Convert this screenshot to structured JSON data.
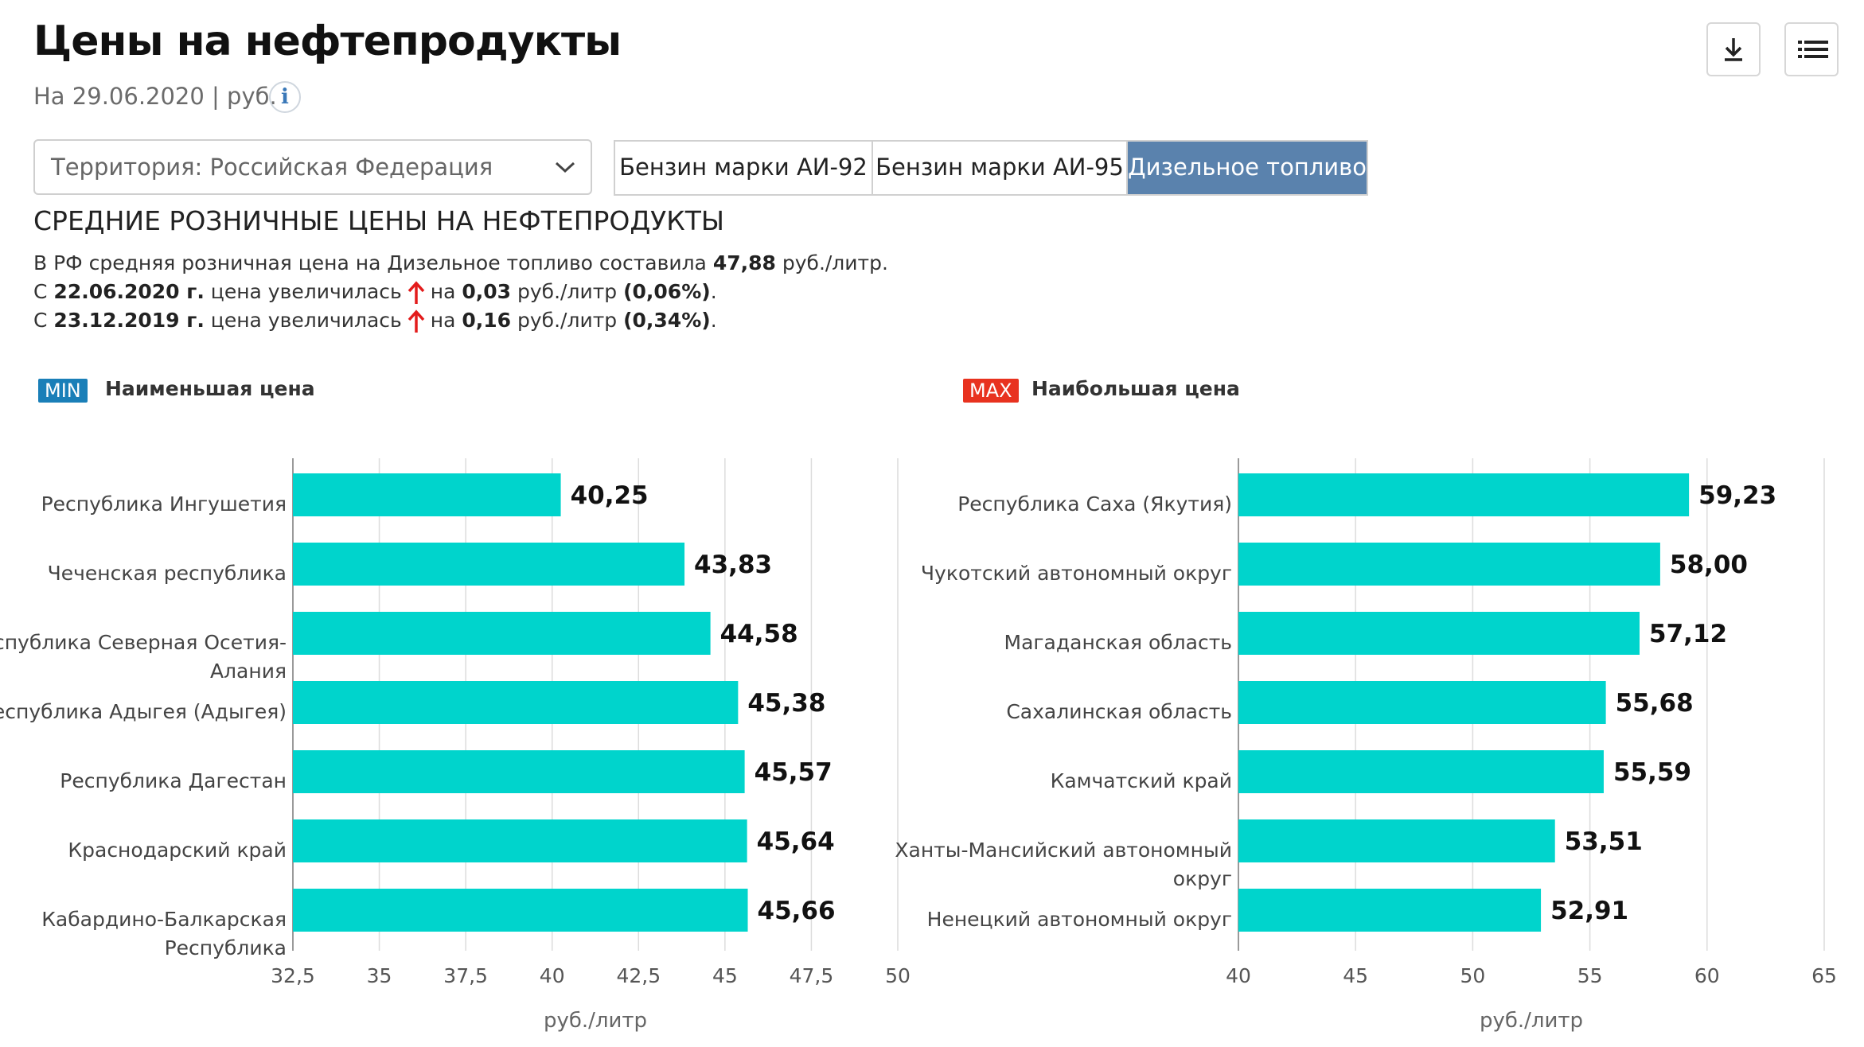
{
  "header": {
    "title": "Цены на нефтепродукты",
    "date_unit": "На 29.06.2020 | руб.",
    "info_icon": "i"
  },
  "controls": {
    "territory_label": "Территория: Российская  Федерация",
    "tabs": [
      {
        "label": "Бензин марки АИ-92",
        "active": false
      },
      {
        "label": "Бензин марки АИ-95",
        "active": false
      },
      {
        "label": "Дизельное топливо",
        "active": true
      }
    ]
  },
  "summary": {
    "heading": "СРЕДНИЕ РОЗНИЧНЫЕ ЦЕНЫ НА НЕФТЕПРОДУКТЫ",
    "line1_text": "В РФ средняя розничная цена на Дизельное топливо составила",
    "line1_value": "47,88",
    "line1_unit": "руб./литр.",
    "line2_prefix": "С",
    "line2_date": "22.06.2020 г.",
    "line2_text": "цена увеличилась",
    "line2_on": "на",
    "line2_value": "0,03",
    "line2_unit": "руб./литр",
    "line2_pct": "(0,06%)",
    "line3_prefix": "С",
    "line3_date": "23.12.2019 г.",
    "line3_text": "цена увеличилась",
    "line3_on": "на",
    "line3_value": "0,16",
    "line3_unit": "руб./литр",
    "line3_pct": "(0,34%)",
    "period_end": ".",
    "up_color": "#e31b1b"
  },
  "legend": {
    "min_badge": "MIN",
    "min_label": "Наименьшая цена",
    "max_badge": "MAX",
    "max_label": "Наибольшая цена",
    "min_color": "#1a7fb8",
    "max_color": "#e8321f"
  },
  "icons": [
    "info-icon",
    "download-icon",
    "list-icon",
    "chevron-down-icon",
    "arrow-up-icon"
  ],
  "chart_data": [
    {
      "type": "bar",
      "orientation": "horizontal",
      "categories": [
        "Республика Ингушетия",
        "Чеченская республика",
        "Республика Северная Осетия-Алания",
        "Республика Адыгея (Адыгея)",
        "Республика Дагестан",
        "Краснодарский край",
        "Кабардино-Балкарская Республика"
      ],
      "category_lines": [
        [
          "Республика Ингушетия"
        ],
        [
          "Чеченская республика"
        ],
        [
          "Республика Северная Осетия-",
          "Алания"
        ],
        [
          "Республика Адыгея (Адыгея)"
        ],
        [
          "Республика Дагестан"
        ],
        [
          "Краснодарский край"
        ],
        [
          "Кабардино-Балкарская",
          "Республика"
        ]
      ],
      "values": [
        40.25,
        43.83,
        44.58,
        45.38,
        45.57,
        45.64,
        45.66
      ],
      "value_labels": [
        "40,25",
        "43,83",
        "44,58",
        "45,38",
        "45,57",
        "45,64",
        "45,66"
      ],
      "xlim": [
        32.5,
        50
      ],
      "ticks": [
        32.5,
        35,
        37.5,
        40,
        42.5,
        45,
        47.5,
        50
      ],
      "tick_labels": [
        "32,5",
        "35",
        "37,5",
        "40",
        "42,5",
        "45",
        "47,5",
        "50"
      ],
      "xlabel": "руб./литр",
      "bar_color": "#00d4cc",
      "grid": true
    },
    {
      "type": "bar",
      "orientation": "horizontal",
      "categories": [
        "Республика Саха (Якутия)",
        "Чукотский автономный округ",
        "Магаданская область",
        "Сахалинская область",
        "Камчатский край",
        "Ханты-Мансийский автономный округ",
        "Ненецкий автономный округ"
      ],
      "category_lines": [
        [
          "Республика Саха (Якутия)"
        ],
        [
          "Чукотский автономный округ"
        ],
        [
          "Магаданская область"
        ],
        [
          "Сахалинская область"
        ],
        [
          "Камчатский край"
        ],
        [
          "Ханты-Мансийский автономный",
          "округ"
        ],
        [
          "Ненецкий автономный округ"
        ]
      ],
      "values": [
        59.23,
        58.0,
        57.12,
        55.68,
        55.59,
        53.51,
        52.91
      ],
      "value_labels": [
        "59,23",
        "58,00",
        "57,12",
        "55,68",
        "55,59",
        "53,51",
        "52,91"
      ],
      "xlim": [
        40,
        65
      ],
      "ticks": [
        40,
        45,
        50,
        55,
        60,
        65
      ],
      "tick_labels": [
        "40",
        "45",
        "50",
        "55",
        "60",
        "65"
      ],
      "xlabel": "руб./литр",
      "bar_color": "#00d4cc",
      "grid": true
    }
  ]
}
